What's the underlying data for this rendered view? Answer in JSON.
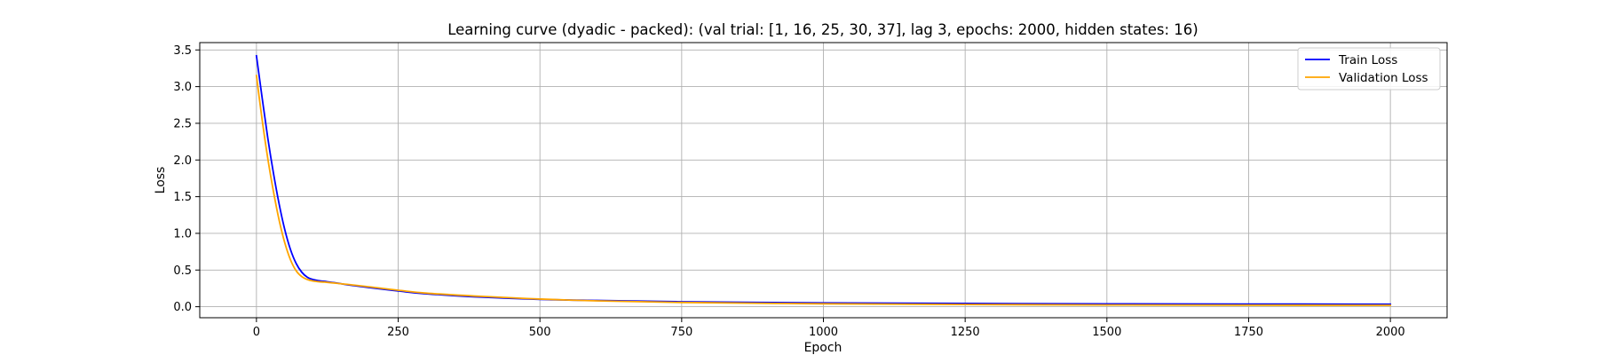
{
  "chart_data": {
    "type": "line",
    "title": "Learning curve (dyadic - packed): (val trial: [1, 16, 25, 30, 37], lag 3, epochs: 2000, hidden states: 16)",
    "xlabel": "Epoch",
    "ylabel": "Loss",
    "xlim": [
      -100,
      2100
    ],
    "ylim": [
      -0.15,
      3.6
    ],
    "xticks": [
      0,
      250,
      500,
      750,
      1000,
      1250,
      1500,
      1750,
      2000
    ],
    "xtick_labels": [
      "0",
      "250",
      "500",
      "750",
      "1000",
      "1250",
      "1500",
      "1750",
      "2000"
    ],
    "yticks": [
      0.0,
      0.5,
      1.0,
      1.5,
      2.0,
      2.5,
      3.0,
      3.5
    ],
    "ytick_labels": [
      "0.0",
      "0.5",
      "1.0",
      "1.5",
      "2.0",
      "2.5",
      "3.0",
      "3.5"
    ],
    "grid": true,
    "legend_position": "top-right",
    "series": [
      {
        "name": "Train Loss",
        "color": "#0000ff",
        "x": [
          0,
          10,
          20,
          30,
          40,
          50,
          60,
          70,
          80,
          90,
          100,
          110,
          120,
          140,
          160,
          200,
          250,
          300,
          400,
          500,
          600,
          750,
          1000,
          1250,
          1500,
          1750,
          2000
        ],
        "values": [
          3.42,
          2.85,
          2.3,
          1.82,
          1.4,
          1.05,
          0.78,
          0.59,
          0.47,
          0.4,
          0.37,
          0.355,
          0.345,
          0.325,
          0.3,
          0.26,
          0.215,
          0.175,
          0.13,
          0.1,
          0.085,
          0.068,
          0.052,
          0.044,
          0.039,
          0.036,
          0.034
        ]
      },
      {
        "name": "Validation Loss",
        "color": "#ffa500",
        "x": [
          0,
          10,
          20,
          30,
          40,
          50,
          60,
          70,
          80,
          90,
          100,
          110,
          120,
          140,
          160,
          200,
          250,
          300,
          400,
          500,
          600,
          750,
          1000,
          1250,
          1500,
          1750,
          2000
        ],
        "values": [
          3.15,
          2.55,
          2.02,
          1.57,
          1.18,
          0.87,
          0.64,
          0.49,
          0.41,
          0.37,
          0.35,
          0.34,
          0.335,
          0.32,
          0.305,
          0.27,
          0.225,
          0.185,
          0.14,
          0.105,
          0.08,
          0.058,
          0.04,
          0.03,
          0.024,
          0.021,
          0.019
        ]
      }
    ]
  }
}
